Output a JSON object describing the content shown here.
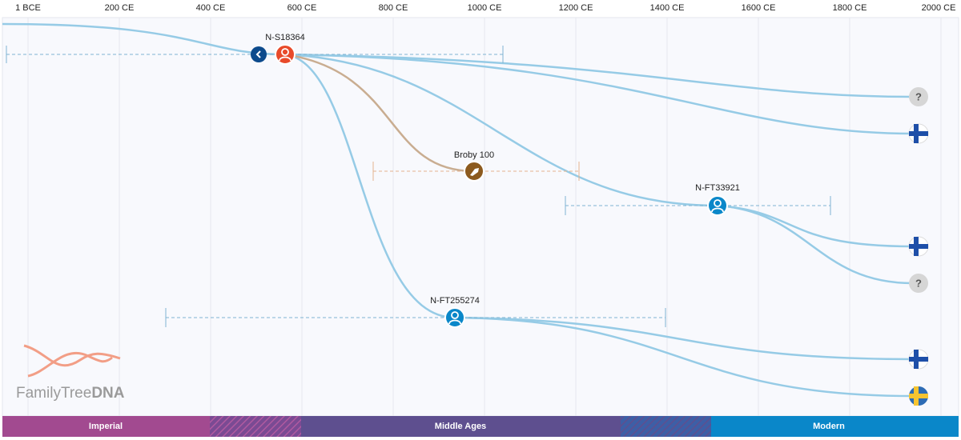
{
  "axis": {
    "ticks": [
      "1 BCE",
      "200 CE",
      "400 CE",
      "600 CE",
      "800 CE",
      "1000 CE",
      "1200 CE",
      "1400 CE",
      "1600 CE",
      "1800 CE",
      "2000 CE"
    ]
  },
  "nodes": [
    {
      "label": "N-S18364"
    },
    {
      "label": "Broby 100"
    },
    {
      "label": "N-FT33921"
    },
    {
      "label": "N-FT255274"
    }
  ],
  "unknown": "?",
  "eras": [
    "Imperial",
    "Middle Ages",
    "Modern"
  ],
  "logo": {
    "text": "FamilyTree",
    "bold": "DNA"
  }
}
